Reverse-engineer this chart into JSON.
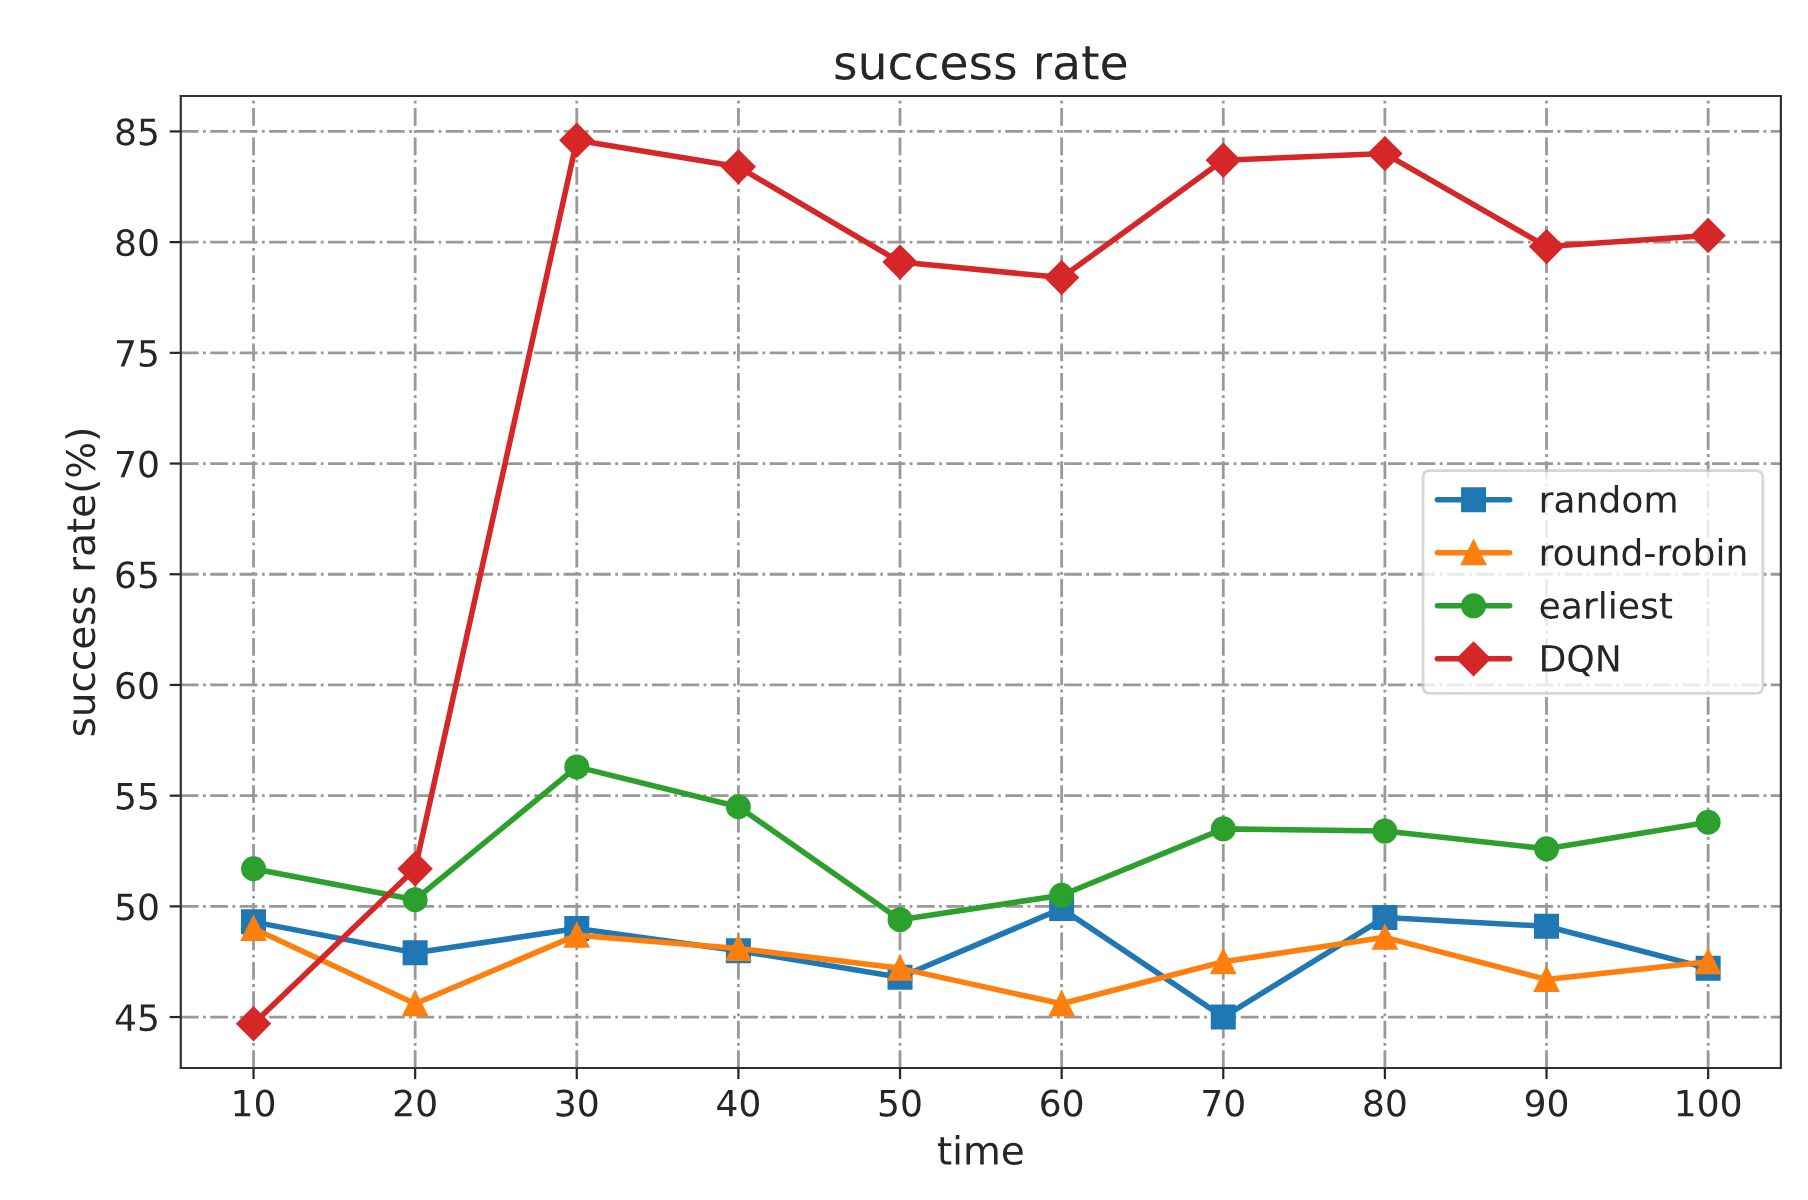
{
  "chart_data": {
    "type": "line",
    "title": "success rate",
    "xlabel": "time",
    "ylabel": "success rate(%)",
    "x": [
      10,
      20,
      30,
      40,
      50,
      60,
      70,
      80,
      90,
      100
    ],
    "series": [
      {
        "name": "random",
        "color": "#1f77b4",
        "marker": "square",
        "values": [
          49.3,
          47.9,
          49.0,
          48.0,
          46.8,
          49.9,
          45.0,
          49.5,
          49.1,
          47.2
        ]
      },
      {
        "name": "round-robin",
        "color": "#ff7f0e",
        "marker": "triangle",
        "values": [
          49.0,
          45.6,
          48.7,
          48.1,
          47.2,
          45.6,
          47.5,
          48.6,
          46.7,
          47.5
        ]
      },
      {
        "name": "earliest",
        "color": "#2ca02c",
        "marker": "circle",
        "values": [
          51.7,
          50.3,
          56.3,
          54.5,
          49.4,
          50.5,
          53.5,
          53.4,
          52.6,
          53.8
        ]
      },
      {
        "name": "DQN",
        "color": "#d62728",
        "marker": "diamond",
        "values": [
          44.7,
          51.7,
          84.6,
          83.4,
          79.1,
          78.4,
          83.7,
          84.0,
          79.8,
          80.3
        ]
      }
    ],
    "xlim": [
      5.5,
      104.5
    ],
    "ylim": [
      42.7,
      86.6
    ],
    "xticks": [
      10,
      20,
      30,
      40,
      50,
      60,
      70,
      80,
      90,
      100
    ],
    "yticks": [
      45,
      50,
      55,
      60,
      65,
      70,
      75,
      80,
      85
    ],
    "grid": true,
    "legend": "center right",
    "line_style": "solid"
  }
}
